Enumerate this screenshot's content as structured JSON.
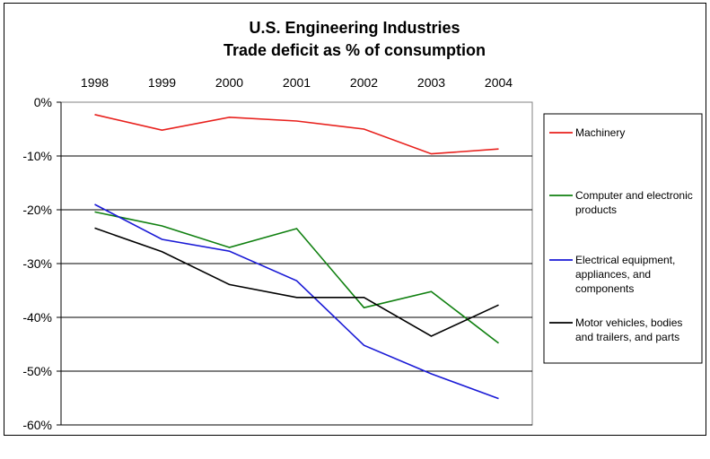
{
  "chart_data": {
    "type": "line",
    "title": "U.S. Engineering Industries",
    "subtitle": "Trade deficit as % of consumption",
    "categories": [
      "1998",
      "1999",
      "2000",
      "2001",
      "2002",
      "2003",
      "2004"
    ],
    "ylim": [
      -60,
      0
    ],
    "y_ticks": [
      "0%",
      "-10%",
      "-20%",
      "-30%",
      "-40%",
      "-50%",
      "-60%"
    ],
    "y_tick_values": [
      0,
      -10,
      -20,
      -30,
      -40,
      -50,
      -60
    ],
    "x_axis_position": "top",
    "grid": true,
    "legend_position": "right",
    "series": [
      {
        "name": "Machinery",
        "color": "#e8201c",
        "values": [
          -2.3,
          -5.2,
          -2.8,
          -3.5,
          -5.0,
          -9.6,
          -8.7
        ]
      },
      {
        "name": "Computer and electronic products",
        "color": "#108010",
        "values": [
          -20.4,
          -23.0,
          -27.0,
          -23.5,
          -38.2,
          -35.2,
          -44.8
        ]
      },
      {
        "name": "Electrical equipment, appliances, and components",
        "color": "#1a1ad6",
        "values": [
          -19.0,
          -25.5,
          -27.7,
          -33.2,
          -45.2,
          -50.5,
          -55.1
        ]
      },
      {
        "name": "Motor vehicles, bodies and  trailers, and parts",
        "color": "#000000",
        "values": [
          -23.4,
          -27.8,
          -33.9,
          -36.3,
          -36.3,
          -43.5,
          -37.7
        ]
      }
    ],
    "legend_lines": [
      [
        "Machinery"
      ],
      [
        "Computer and electronic",
        "products"
      ],
      [
        "Electrical equipment,",
        "appliances, and",
        "components"
      ],
      [
        "Motor vehicles, bodies",
        "and  trailers, and parts"
      ]
    ]
  }
}
